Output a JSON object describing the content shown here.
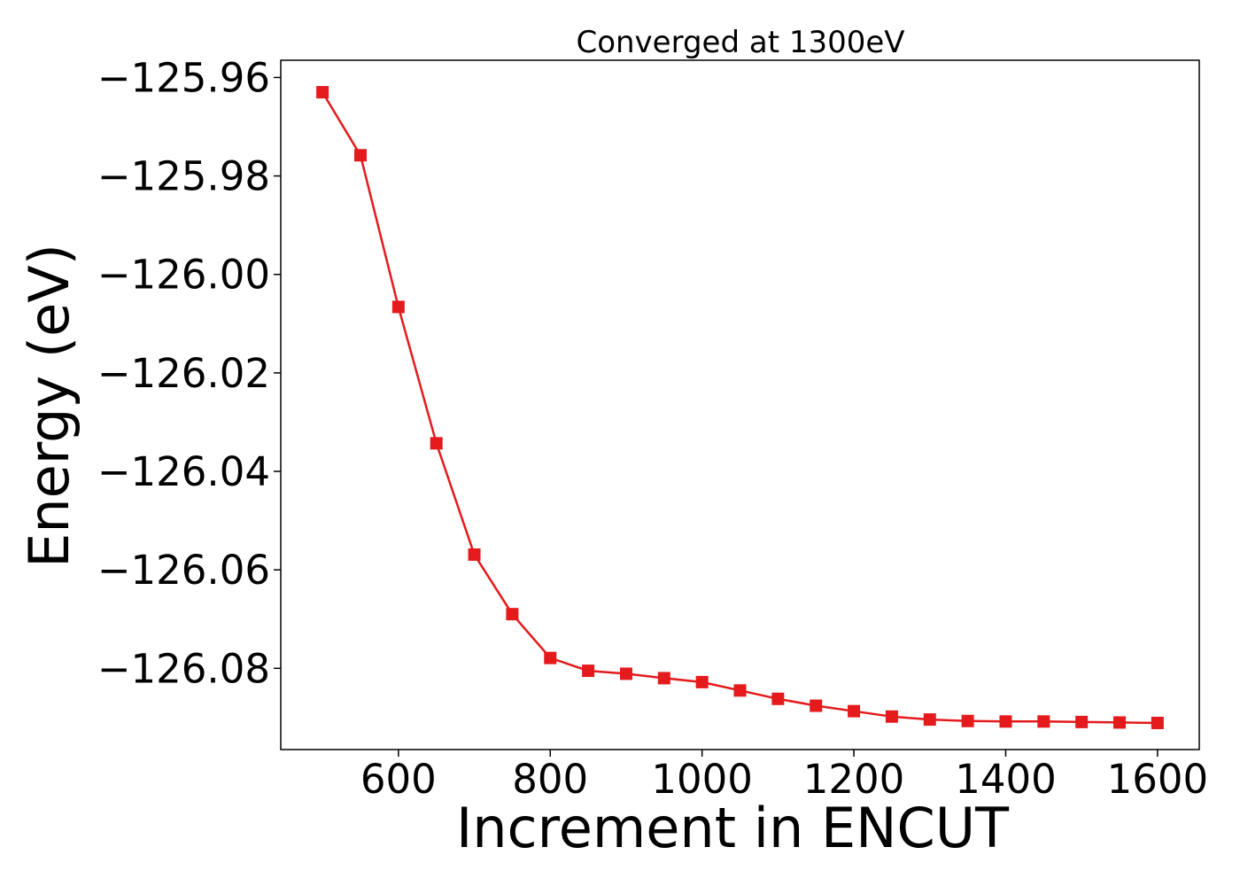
{
  "chart_data": {
    "type": "line",
    "title": "Converged at 1300eV",
    "xlabel": "Increment in ENCUT",
    "ylabel": "Energy (eV)",
    "xlim": [
      445,
      1655
    ],
    "ylim": [
      -126.0965,
      -125.9565
    ],
    "xticks": [
      600,
      800,
      1000,
      1200,
      1400,
      1600
    ],
    "xtick_labels": [
      "600",
      "800",
      "1000",
      "1200",
      "1400",
      "1600"
    ],
    "yticks": [
      -125.96,
      -125.98,
      -126.0,
      -126.02,
      -126.04,
      -126.06,
      -126.08
    ],
    "ytick_labels": [
      "−125.96",
      "−125.98",
      "−126.00",
      "−126.02",
      "−126.04",
      "−126.06",
      "−126.08"
    ],
    "grid": false,
    "series": [
      {
        "color": "#e41a1c",
        "marker": "square",
        "x": [
          500,
          550,
          600,
          650,
          700,
          750,
          800,
          850,
          900,
          950,
          1000,
          1050,
          1100,
          1150,
          1200,
          1250,
          1300,
          1350,
          1400,
          1450,
          1500,
          1550,
          1600
        ],
        "y": [
          -125.963,
          -125.9758,
          -126.0066,
          -126.0343,
          -126.0569,
          -126.069,
          -126.0779,
          -126.0805,
          -126.0811,
          -126.082,
          -126.0828,
          -126.0845,
          -126.0862,
          -126.0876,
          -126.0887,
          -126.0898,
          -126.0904,
          -126.0907,
          -126.0908,
          -126.0908,
          -126.0909,
          -126.091,
          -126.0911
        ]
      }
    ]
  }
}
